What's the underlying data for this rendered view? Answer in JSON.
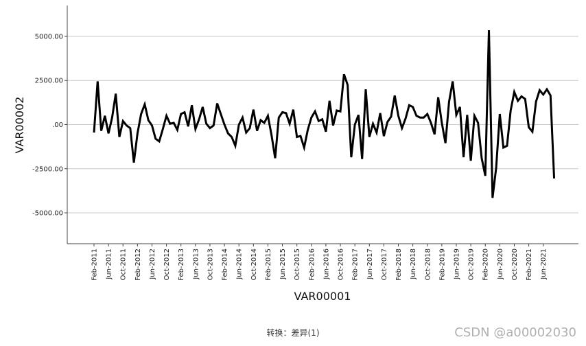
{
  "chart_data": {
    "type": "line",
    "xlabel": "VAR00001",
    "ylabel": "VAR00002",
    "ylim": [
      -6750,
      6750
    ],
    "yticks": [
      5000,
      2500,
      0,
      -2500,
      -5000
    ],
    "ytick_labels": [
      "5000.00",
      "2500.00",
      ".00",
      "-2500.00",
      "-5000.00"
    ],
    "grid": true,
    "x_tick_labels": [
      "Feb-2011",
      "Jun-2011",
      "Oct-2011",
      "Feb-2012",
      "Jun-2012",
      "Oct-2012",
      "Feb-2013",
      "Jun-2013",
      "Oct-2013",
      "Feb-2014",
      "Jun-2014",
      "Oct-2014",
      "Feb-2015",
      "Jun-2015",
      "Oct-2015",
      "Feb-2016",
      "Jun-2016",
      "Oct-2016",
      "Feb-2017",
      "Jun-2017",
      "Oct-2017",
      "Feb-2018",
      "Jun-2018",
      "Oct-2018",
      "Feb-2019",
      "Jun-2019",
      "Oct-2019",
      "Feb-2020",
      "Jun-2020",
      "Oct-2020",
      "Feb-2021",
      "Jun-2021"
    ],
    "x_start": "2011-02",
    "series": [
      {
        "values": [
          -450,
          2450,
          -350,
          500,
          -500,
          400,
          1750,
          -700,
          200,
          -50,
          -200,
          -2150,
          -500,
          600,
          1150,
          250,
          -50,
          -800,
          -950,
          -250,
          500,
          50,
          100,
          -300,
          600,
          700,
          -100,
          1100,
          -250,
          300,
          1000,
          50,
          -200,
          -50,
          1200,
          600,
          0,
          -500,
          -700,
          -1200,
          0,
          400,
          -450,
          -200,
          850,
          -350,
          250,
          100,
          500,
          -600,
          -1900,
          400,
          700,
          650,
          50,
          850,
          -700,
          -650,
          -1300,
          -300,
          400,
          750,
          200,
          300,
          -400,
          1350,
          -50,
          800,
          750,
          2850,
          2250,
          -1850,
          0,
          550,
          -1950,
          2000,
          -700,
          50,
          -450,
          650,
          -650,
          150,
          450,
          1650,
          500,
          -200,
          350,
          1100,
          1000,
          500,
          400,
          400,
          600,
          100,
          -550,
          1550,
          100,
          -1050,
          1300,
          2450,
          550,
          1000,
          -1850,
          550,
          -2050,
          500,
          100,
          -1900,
          -2900,
          5350,
          -4150,
          -2450,
          600,
          -1300,
          -1200,
          800,
          1850,
          1350,
          1600,
          1450,
          -150,
          -400,
          1300,
          1950,
          1700,
          2000,
          1650,
          -3050
        ]
      }
    ]
  },
  "footer": {
    "caption": "转换：差异(1)"
  },
  "watermark": {
    "text": "CSDN @a00002030"
  }
}
